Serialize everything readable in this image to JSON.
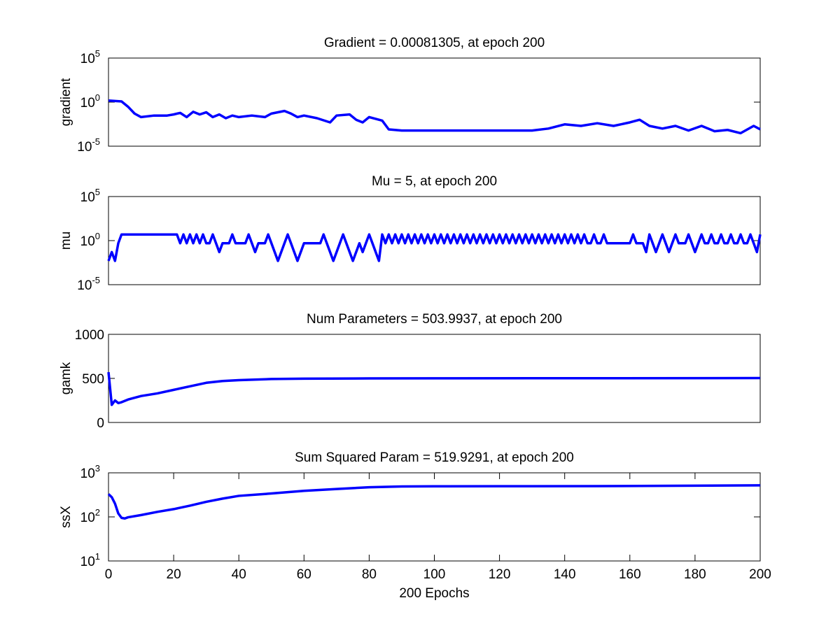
{
  "chart_data": [
    {
      "type": "line",
      "title": "Gradient = 0.00081305, at epoch 200",
      "ylabel": "gradient",
      "yscale": "log",
      "color": "#0000ff",
      "xlim": [
        0,
        200
      ],
      "ylim": [
        1e-05,
        100000
      ],
      "yticks": [
        {
          "value": 1e-05,
          "label": "10",
          "power": "-5"
        },
        {
          "value": 1,
          "label": "10",
          "power": "0"
        },
        {
          "value": 100000,
          "label": "10",
          "power": "5"
        }
      ],
      "x": [
        0,
        4,
        6,
        8,
        10,
        14,
        18,
        20,
        22,
        24,
        26,
        28,
        30,
        32,
        34,
        36,
        38,
        40,
        44,
        48,
        50,
        54,
        56,
        58,
        60,
        64,
        68,
        70,
        74,
        76,
        78,
        80,
        84,
        86,
        90,
        100,
        110,
        120,
        130,
        135,
        140,
        145,
        150,
        155,
        160,
        163,
        166,
        170,
        174,
        178,
        182,
        186,
        190,
        194,
        198,
        200
      ],
      "values": [
        1.5,
        1.2,
        0.3,
        0.05,
        0.02,
        0.03,
        0.03,
        0.04,
        0.06,
        0.02,
        0.08,
        0.04,
        0.07,
        0.02,
        0.04,
        0.015,
        0.03,
        0.02,
        0.03,
        0.02,
        0.05,
        0.1,
        0.05,
        0.02,
        0.03,
        0.015,
        0.005,
        0.03,
        0.04,
        0.01,
        0.005,
        0.02,
        0.008,
        0.0008,
        0.0006,
        0.0006,
        0.0006,
        0.0006,
        0.0006,
        0.001,
        0.003,
        0.002,
        0.004,
        0.002,
        0.005,
        0.01,
        0.002,
        0.001,
        0.002,
        0.0006,
        0.002,
        0.0005,
        0.0007,
        0.0003,
        0.002,
        0.00081305
      ]
    },
    {
      "type": "line",
      "title": "Mu = 5, at epoch 200",
      "ylabel": "mu",
      "yscale": "log",
      "color": "#0000ff",
      "xlim": [
        0,
        200
      ],
      "ylim": [
        1e-05,
        100000
      ],
      "yticks": [
        {
          "value": 1e-05,
          "label": "10",
          "power": "-5"
        },
        {
          "value": 1,
          "label": "10",
          "power": "0"
        },
        {
          "value": 100000,
          "label": "10",
          "power": "5"
        }
      ],
      "x": [
        0,
        1,
        2,
        3,
        4,
        21,
        22,
        23,
        24,
        25,
        26,
        27,
        28,
        29,
        30,
        31,
        32,
        33,
        34,
        35,
        37,
        38,
        39,
        42,
        43,
        44,
        45,
        46,
        48,
        49,
        50,
        51,
        52,
        53,
        54,
        55,
        56,
        57,
        58,
        59,
        60,
        65,
        66,
        67,
        68,
        69,
        70,
        71,
        72,
        73,
        74,
        75,
        76,
        77,
        78,
        79,
        80,
        81,
        82,
        83,
        84,
        85,
        86,
        87,
        88,
        89,
        90,
        91,
        92,
        93,
        94,
        95,
        96,
        97,
        98,
        99,
        100,
        101,
        102,
        103,
        104,
        105,
        106,
        107,
        108,
        109,
        110,
        111,
        112,
        113,
        114,
        115,
        116,
        117,
        118,
        119,
        120,
        121,
        122,
        123,
        124,
        125,
        126,
        127,
        128,
        129,
        130,
        131,
        132,
        133,
        134,
        135,
        136,
        137,
        138,
        139,
        140,
        141,
        142,
        143,
        144,
        145,
        146,
        147,
        148,
        149,
        150,
        151,
        152,
        153,
        160,
        161,
        162,
        164,
        165,
        166,
        167,
        168,
        169,
        170,
        171,
        172,
        173,
        174,
        175,
        177,
        178,
        179,
        180,
        181,
        182,
        183,
        184,
        185,
        186,
        187,
        188,
        189,
        190,
        191,
        192,
        193,
        194,
        195,
        196,
        197,
        198,
        199,
        200
      ],
      "values": [
        0.005,
        0.05,
        0.005,
        0.5,
        5,
        5,
        0.5,
        5,
        0.5,
        5,
        0.5,
        5,
        0.5,
        5,
        0.5,
        0.5,
        5,
        0.5,
        0.05,
        0.5,
        0.5,
        5,
        0.5,
        0.5,
        5,
        0.5,
        0.05,
        0.5,
        0.5,
        5,
        0.5,
        0.05,
        0.005,
        0.05,
        0.5,
        5,
        0.5,
        0.05,
        0.005,
        0.05,
        0.5,
        0.5,
        5,
        0.5,
        0.05,
        0.005,
        0.05,
        0.5,
        5,
        0.5,
        0.05,
        0.005,
        0.05,
        0.5,
        0.05,
        0.5,
        5,
        0.5,
        0.05,
        0.005,
        5,
        0.5,
        5,
        0.5,
        5,
        0.5,
        5,
        0.5,
        5,
        0.5,
        5,
        0.5,
        5,
        0.5,
        5,
        0.5,
        5,
        0.5,
        5,
        0.5,
        5,
        0.5,
        5,
        0.5,
        5,
        0.5,
        5,
        0.5,
        5,
        0.5,
        5,
        0.5,
        5,
        0.5,
        5,
        0.5,
        5,
        0.5,
        5,
        0.5,
        5,
        0.5,
        5,
        0.5,
        5,
        0.5,
        5,
        0.5,
        5,
        0.5,
        5,
        0.5,
        5,
        0.5,
        5,
        0.5,
        5,
        0.5,
        5,
        0.5,
        5,
        0.5,
        5,
        0.5,
        0.5,
        5,
        0.5,
        0.5,
        5,
        0.5,
        0.5,
        5,
        0.5,
        0.5,
        0.05,
        5,
        0.5,
        0.05,
        0.5,
        5,
        0.5,
        0.05,
        0.5,
        5,
        0.5,
        0.5,
        5,
        0.5,
        0.05,
        0.5,
        5,
        0.5,
        0.5,
        5,
        0.5,
        0.5,
        5,
        0.5,
        0.5,
        5,
        0.5,
        0.5,
        5,
        0.5,
        0.5,
        5,
        0.5,
        0.05,
        5
      ]
    },
    {
      "type": "line",
      "title": "Num Parameters = 503.9937, at epoch 200",
      "ylabel": "gamk",
      "yscale": "linear",
      "color": "#0000ff",
      "xlim": [
        0,
        200
      ],
      "ylim": [
        0,
        1000
      ],
      "yticks": [
        0,
        500,
        1000
      ],
      "x": [
        0,
        1,
        2,
        3,
        4,
        6,
        10,
        15,
        20,
        25,
        30,
        35,
        40,
        50,
        60,
        80,
        100,
        150,
        200
      ],
      "values": [
        571,
        200,
        250,
        220,
        230,
        260,
        300,
        330,
        370,
        410,
        450,
        470,
        480,
        493,
        497,
        500,
        501,
        502,
        503.9937
      ]
    },
    {
      "type": "line",
      "title": "Sum Squared Param = 519.9291, at epoch 200",
      "ylabel": "ssX",
      "xlabel": "200 Epochs",
      "yscale": "log",
      "color": "#0000ff",
      "xlim": [
        0,
        200
      ],
      "ylim": [
        10,
        1000
      ],
      "yticks": [
        {
          "value": 10,
          "label": "10",
          "power": "1"
        },
        {
          "value": 100,
          "label": "10",
          "power": "2"
        },
        {
          "value": 1000,
          "label": "10",
          "power": "3"
        }
      ],
      "xticks": [
        0,
        20,
        40,
        60,
        80,
        100,
        120,
        140,
        160,
        180,
        200
      ],
      "x": [
        0,
        1,
        2,
        3,
        4,
        5,
        6,
        10,
        15,
        20,
        25,
        30,
        35,
        40,
        50,
        60,
        70,
        80,
        90,
        100,
        120,
        150,
        180,
        200
      ],
      "values": [
        330,
        280,
        200,
        120,
        95,
        92,
        98,
        110,
        130,
        150,
        180,
        220,
        260,
        300,
        340,
        390,
        430,
        470,
        490,
        495,
        497,
        500,
        510,
        519.9291
      ]
    }
  ]
}
